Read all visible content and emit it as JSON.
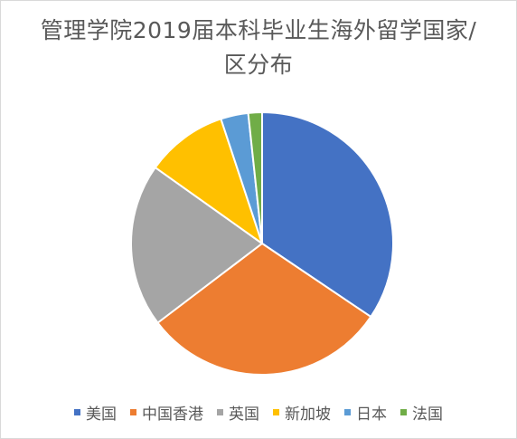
{
  "chart_data": {
    "type": "pie",
    "title": "管理学院2019届本科毕业生海外留学国家/地区分布",
    "title_lines": [
      "管理学院2019届本科毕业生海外留学国家/",
      "区分布"
    ],
    "categories": [
      "美国",
      "中国香港",
      "英国",
      "新加坡",
      "日本",
      "法国"
    ],
    "values": [
      34.5,
      30.3,
      20.2,
      10.1,
      3.4,
      1.7
    ],
    "colors": [
      "#4472C4",
      "#ED7D31",
      "#A5A5A5",
      "#FFC000",
      "#5B9BD5",
      "#70AD47"
    ],
    "start_angle_deg": 0,
    "direction": "clockwise",
    "legend_position": "bottom",
    "data_labels": false
  }
}
